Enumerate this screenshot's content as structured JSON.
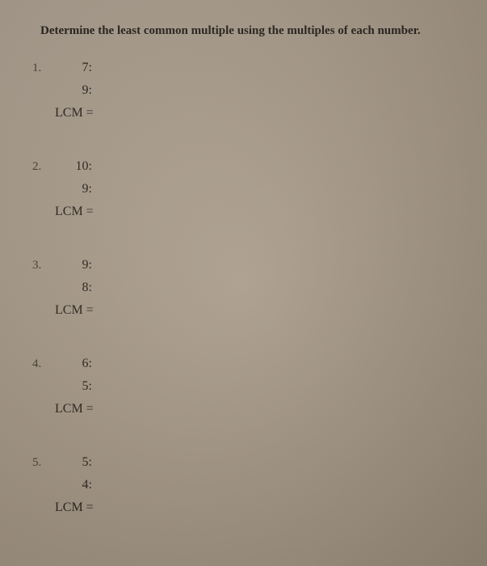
{
  "title": "Determine the least common multiple using the multiples of each number.",
  "problems": [
    {
      "number": "1.",
      "first": "7:",
      "second": "9:",
      "lcm": "LCM ="
    },
    {
      "number": "2.",
      "first": "10:",
      "second": "9:",
      "lcm": "LCM ="
    },
    {
      "number": "3.",
      "first": "9:",
      "second": "8:",
      "lcm": "LCM ="
    },
    {
      "number": "4.",
      "first": "6:",
      "second": "5:",
      "lcm": "LCM ="
    },
    {
      "number": "5.",
      "first": "5:",
      "second": "4:",
      "lcm": "LCM ="
    }
  ]
}
